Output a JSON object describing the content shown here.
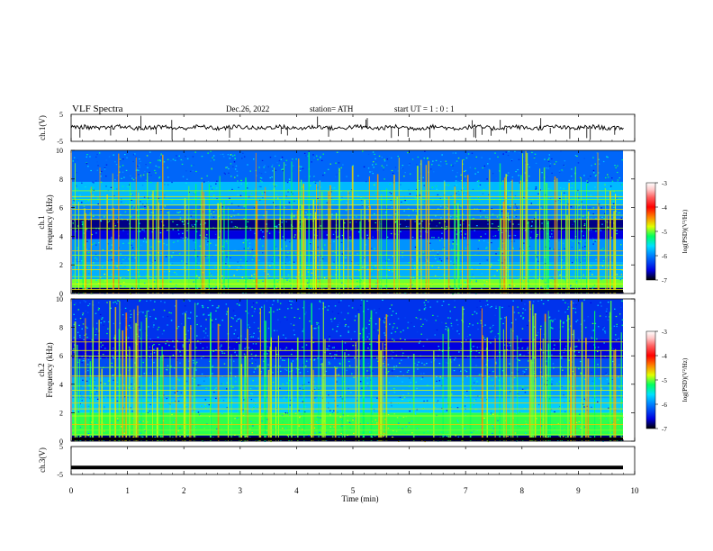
{
  "header": {
    "title": "VLF  Spectra",
    "date": "Dec.26, 2022",
    "station": "station= ATH",
    "start": "start  UT  =    1  : 0   : 1"
  },
  "chart_data": [
    {
      "type": "line",
      "panel": "ch1-waveform",
      "ylabel": "ch.1(V)",
      "ylim": [
        -5,
        5
      ],
      "y_ticks": [
        "5",
        "-5"
      ],
      "xlim": [
        0,
        10
      ],
      "data_extent_min": [
        0,
        9.8
      ],
      "baseline_value": 0.1
    },
    {
      "type": "heatmap",
      "panel": "ch1-spectrogram",
      "ylabel": "ch.1\nFrequency  (kHz)",
      "ylim": [
        0,
        10
      ],
      "y_ticks": [
        "0",
        "2",
        "4",
        "6",
        "8",
        "10"
      ],
      "xlim": [
        0,
        10
      ],
      "colorbar": {
        "label": "log(PSD)(V²/Hz)",
        "range": [
          -7,
          -3
        ],
        "ticks": [
          "-3",
          "-4",
          "-5",
          "-6",
          "-7"
        ],
        "colors": [
          "#000000",
          "#0000e0",
          "#0080ff",
          "#00e0ff",
          "#00ff60",
          "#e0ff00",
          "#ff8000",
          "#ff0000",
          "#ff6060",
          "#ffc8c8",
          "#ffffff"
        ]
      }
    },
    {
      "type": "heatmap",
      "panel": "ch2-spectrogram",
      "ylabel": "ch.2\nFrequency  (kHz)",
      "ylim": [
        0,
        10
      ],
      "y_ticks": [
        "0",
        "2",
        "4",
        "6",
        "8",
        "10"
      ],
      "xlim": [
        0,
        10
      ],
      "colorbar": {
        "label": "log(PSD)(V²/Hz)",
        "range": [
          -7,
          -3
        ],
        "ticks": [
          "-3",
          "-4",
          "-5",
          "-6",
          "-7"
        ]
      }
    },
    {
      "type": "line",
      "panel": "ch3-waveform",
      "ylabel": "ch.3(V)",
      "ylim": [
        -5,
        5
      ],
      "y_ticks": [
        "5",
        "-5"
      ],
      "xlim": [
        0,
        10
      ],
      "baseline_value": -2.5
    }
  ],
  "x_axis": {
    "label": "Time  (min)",
    "ticks": [
      "0",
      "1",
      "2",
      "3",
      "4",
      "5",
      "6",
      "7",
      "8",
      "9",
      "10"
    ]
  }
}
